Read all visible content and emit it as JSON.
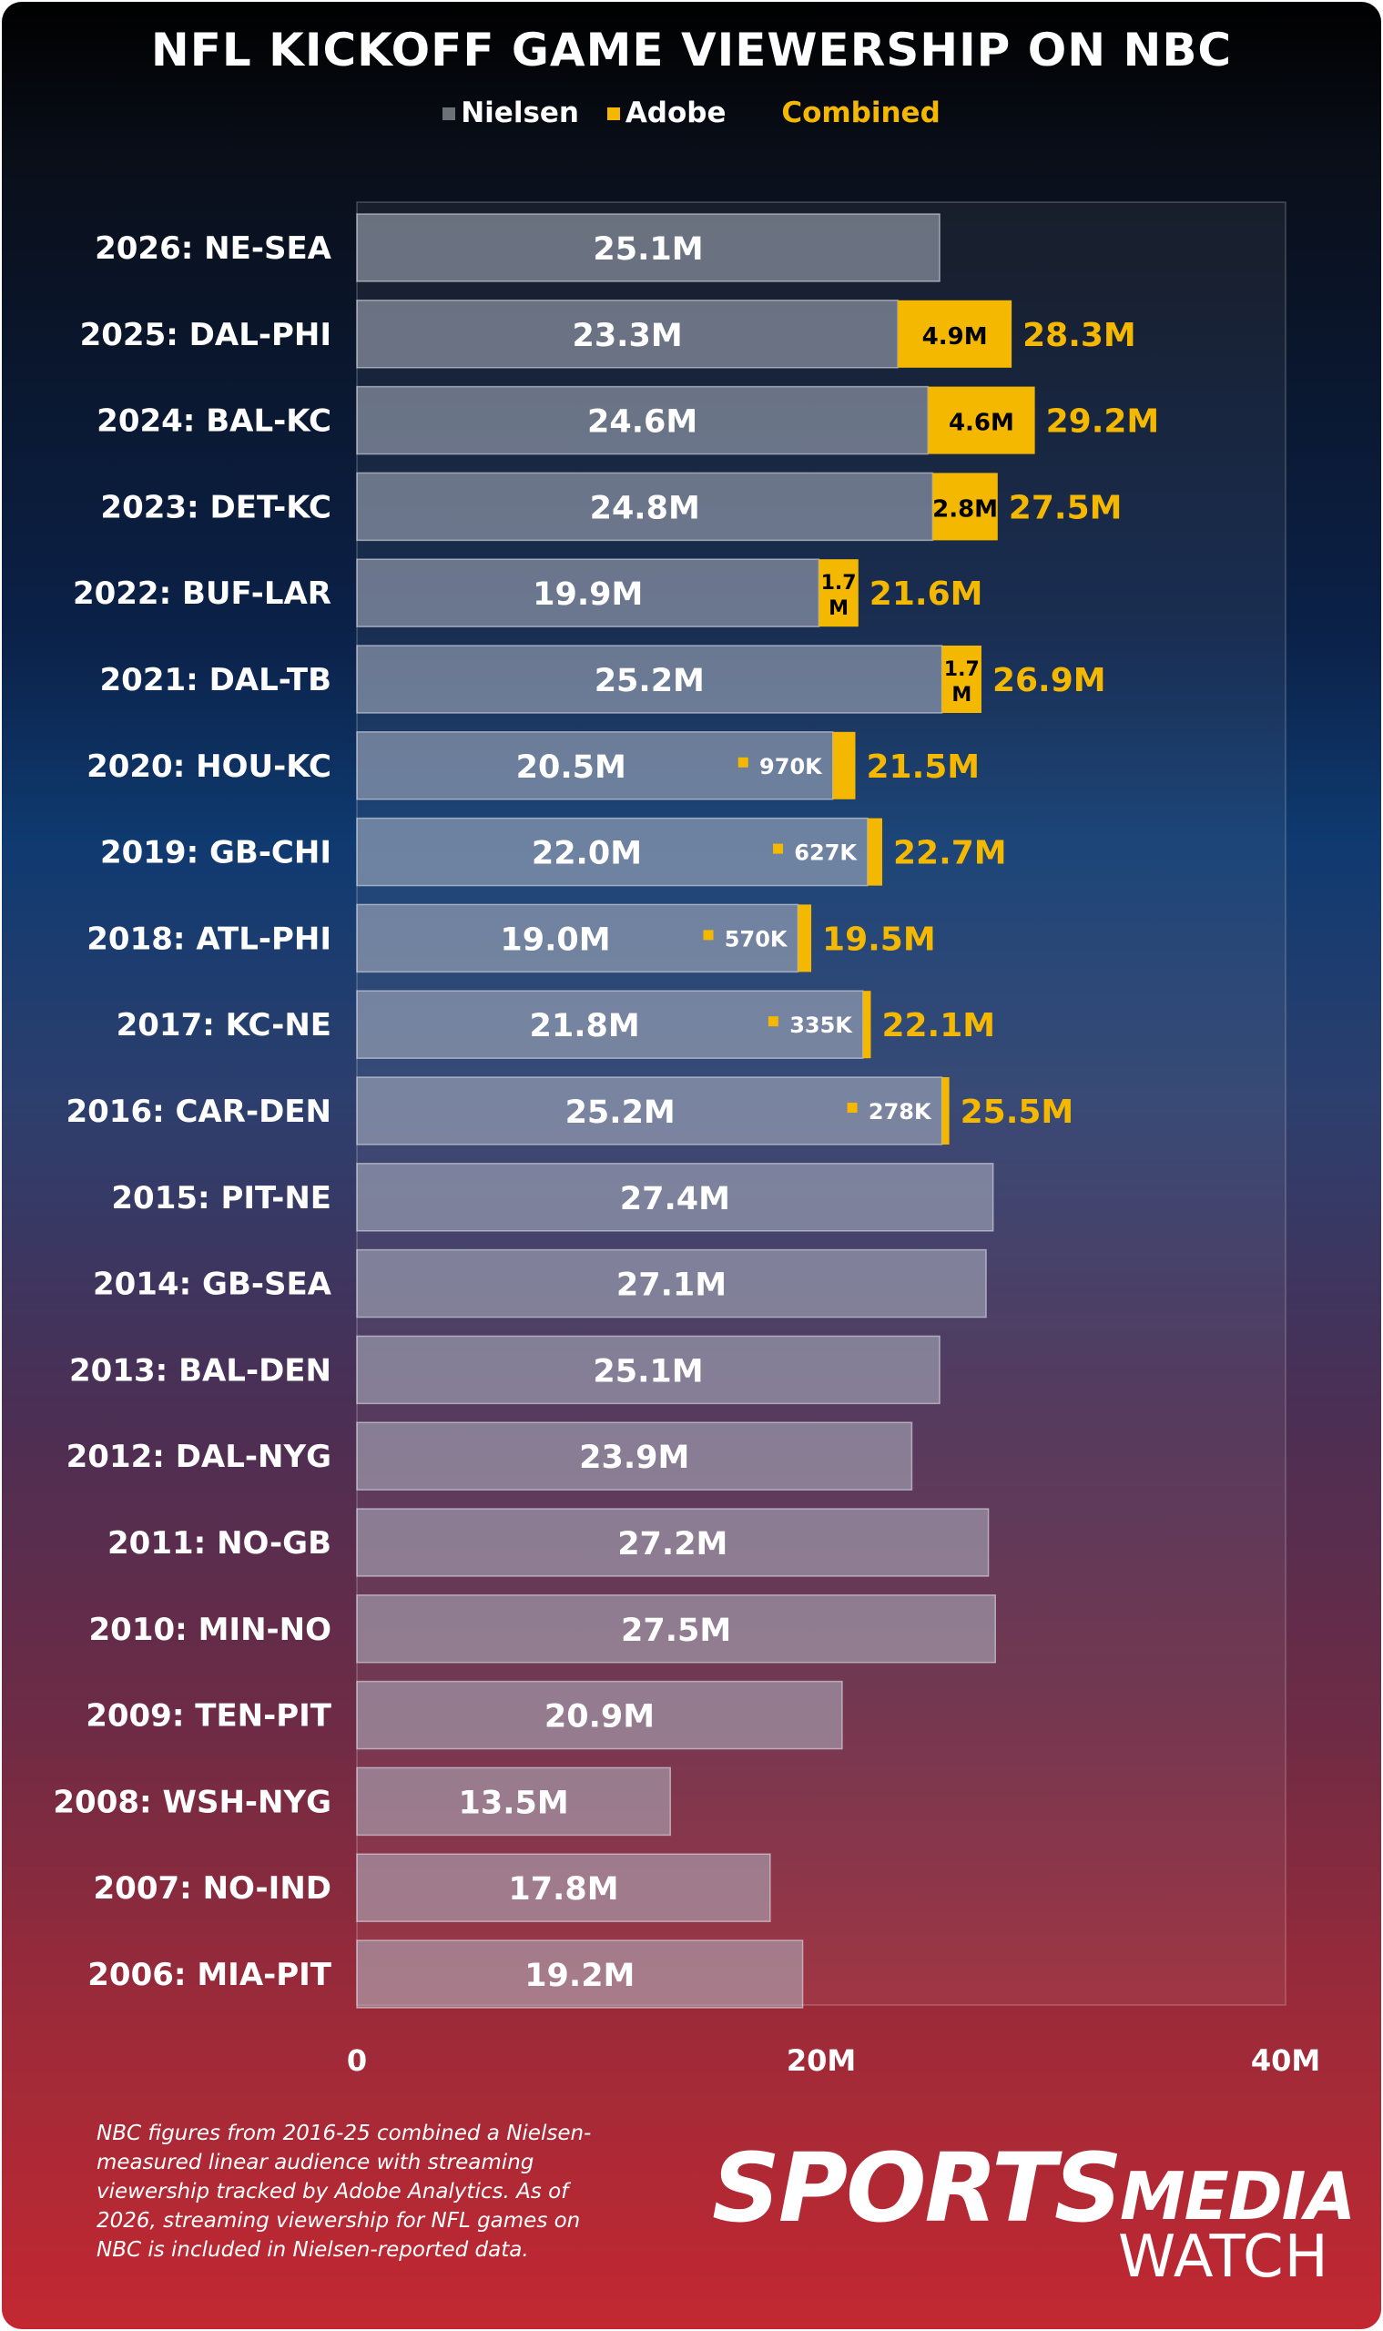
{
  "chart_data": {
    "type": "bar",
    "title": "NFL KICKOFF GAME VIEWERSHIP ON NBC",
    "legend": [
      {
        "name": "Nielsen",
        "color": "#6b7079"
      },
      {
        "name": "Adobe",
        "color": "#f5b800"
      },
      {
        "name": "Combined",
        "color": "#f5b800"
      }
    ],
    "legend_position": "top-center",
    "categories": [
      "2026: NE-SEA",
      "2025: DAL-PHI",
      "2024: BAL-KC",
      "2023: DET-KC",
      "2022: BUF-LAR",
      "2021: DAL-TB",
      "2020: HOU-KC",
      "2019: GB-CHI",
      "2018: ATL-PHI",
      "2017: KC-NE",
      "2016: CAR-DEN",
      "2015: PIT-NE",
      "2014: GB-SEA",
      "2013: BAL-DEN",
      "2012: DAL-NYG",
      "2011: NO-GB",
      "2010: MIN-NO",
      "2009: TEN-PIT",
      "2008: WSH-NYG",
      "2007: NO-IND",
      "2006: MIA-PIT"
    ],
    "series": [
      {
        "name": "Nielsen",
        "values": [
          25.1,
          23.3,
          24.6,
          24.8,
          19.9,
          25.2,
          20.5,
          22.0,
          19.0,
          21.8,
          25.2,
          27.4,
          27.1,
          25.1,
          23.9,
          27.2,
          27.5,
          20.9,
          13.5,
          17.8,
          19.2
        ],
        "labels": [
          "25.1M",
          "23.3M",
          "24.6M",
          "24.8M",
          "19.9M",
          "25.2M",
          "20.5M",
          "22.0M",
          "19.0M",
          "21.8M",
          "25.2M",
          "27.4M",
          "27.1M",
          "25.1M",
          "23.9M",
          "27.2M",
          "27.5M",
          "20.9M",
          "13.5M",
          "17.8M",
          "19.2M"
        ]
      },
      {
        "name": "Adobe",
        "values": [
          null,
          4.9,
          4.6,
          2.8,
          1.7,
          1.7,
          0.97,
          0.627,
          0.57,
          0.335,
          0.278,
          null,
          null,
          null,
          null,
          null,
          null,
          null,
          null,
          null,
          null
        ],
        "labels": [
          "",
          "4.9M",
          "4.6M",
          "2.8M",
          "1.7 M",
          "1.7 M",
          "970K",
          "627K",
          "570K",
          "335K",
          "278K",
          "",
          "",
          "",
          "",
          "",
          "",
          "",
          "",
          "",
          ""
        ]
      },
      {
        "name": "Combined",
        "values": [
          null,
          28.3,
          29.2,
          27.5,
          21.6,
          26.9,
          21.5,
          22.7,
          19.5,
          22.1,
          25.5,
          null,
          null,
          null,
          null,
          null,
          null,
          null,
          null,
          null,
          null
        ],
        "labels": [
          "",
          "28.3M",
          "29.2M",
          "27.5M",
          "21.6M",
          "26.9M",
          "21.5M",
          "22.7M",
          "19.5M",
          "22.1M",
          "25.5M",
          "",
          "",
          "",
          "",
          "",
          "",
          "",
          "",
          "",
          ""
        ]
      }
    ],
    "x_ticks": [
      0,
      20,
      40
    ],
    "x_tick_labels": [
      "0",
      "20M",
      "40M"
    ],
    "xlim": [
      0,
      40
    ],
    "xlabel": "",
    "ylabel": "",
    "grid": false
  },
  "footnote": "NBC figures from 2016-25 combined a Nielsen-measured linear audience with streaming viewership tracked by Adobe Analytics. As of 2026, streaming viewership for NFL games on NBC is included in Nielsen-reported data.",
  "logo": {
    "line1": "SPORTS",
    "line2": "MEDIA",
    "line3": "WATCH"
  }
}
